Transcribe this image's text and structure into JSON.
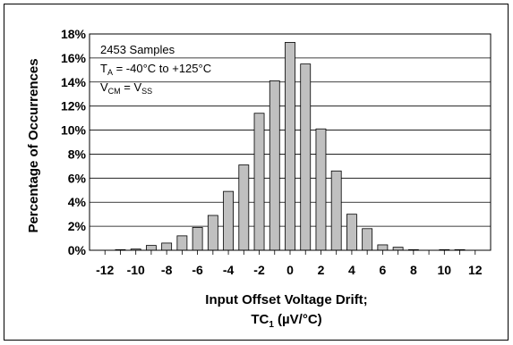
{
  "chart_data": {
    "type": "bar",
    "title": "",
    "x": [
      -12,
      -11,
      -10,
      -9,
      -8,
      -7,
      -6,
      -5,
      -4,
      -3,
      -2,
      -1,
      0,
      1,
      2,
      3,
      4,
      5,
      6,
      7,
      8,
      9,
      10,
      11,
      12
    ],
    "values": [
      0.0,
      0.05,
      0.1,
      0.4,
      0.6,
      1.2,
      1.9,
      2.9,
      4.9,
      7.1,
      11.4,
      14.1,
      17.3,
      15.5,
      10.1,
      6.6,
      3.0,
      1.8,
      0.45,
      0.25,
      0.05,
      0.0,
      0.05,
      0.05,
      0.0
    ],
    "xlim": [
      -12,
      12
    ],
    "ylim": [
      0,
      18
    ],
    "x_ticks": [
      "-12",
      "-10",
      "-8",
      "-6",
      "-4",
      "-2",
      "0",
      "2",
      "4",
      "6",
      "8",
      "10",
      "12"
    ],
    "y_ticks": [
      "0%",
      "2%",
      "4%",
      "6%",
      "8%",
      "10%",
      "12%",
      "14%",
      "16%",
      "18%"
    ],
    "xlabel_line1": "Input Offset Voltage Drift;",
    "xlabel_line2_base": "TC",
    "xlabel_line2_sub": "1",
    "xlabel_line2_rest": " (µV/°C)",
    "ylabel": "Percentage of Occurrences",
    "annotation": {
      "samples": "2453 Samples",
      "temp_base": "T",
      "temp_sub": "A",
      "temp_rest": " = -40°C to +125°C",
      "vcm_base": "V",
      "vcm_sub": "CM",
      "vcm_mid": " = V",
      "vcm_sub2": "SS"
    },
    "grid": true,
    "bar_color": "#c0c0c0"
  }
}
